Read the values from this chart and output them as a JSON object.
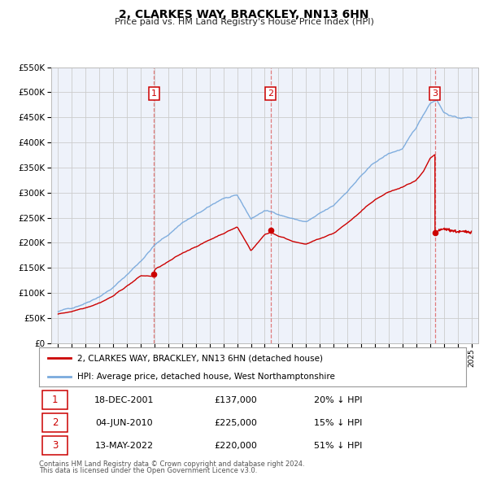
{
  "title": "2, CLARKES WAY, BRACKLEY, NN13 6HN",
  "subtitle": "Price paid vs. HM Land Registry's House Price Index (HPI)",
  "red_label": "2, CLARKES WAY, BRACKLEY, NN13 6HN (detached house)",
  "blue_label": "HPI: Average price, detached house, West Northamptonshire",
  "footnote1": "Contains HM Land Registry data © Crown copyright and database right 2024.",
  "footnote2": "This data is licensed under the Open Government Licence v3.0.",
  "sales": [
    {
      "num": 1,
      "date": "18-DEC-2001",
      "price": "£137,000",
      "hpi": "20% ↓ HPI",
      "year": 2001.96
    },
    {
      "num": 2,
      "date": "04-JUN-2010",
      "price": "£225,000",
      "hpi": "15% ↓ HPI",
      "year": 2010.42
    },
    {
      "num": 3,
      "date": "13-MAY-2022",
      "price": "£220,000",
      "hpi": "51% ↓ HPI",
      "year": 2022.36
    }
  ],
  "sale_values": [
    137000,
    225000,
    220000
  ],
  "ylim": [
    0,
    550000
  ],
  "yticks": [
    0,
    50000,
    100000,
    150000,
    200000,
    250000,
    300000,
    350000,
    400000,
    450000,
    500000,
    550000
  ],
  "xlim_start": 1994.5,
  "xlim_end": 2025.5,
  "background_color": "#ffffff",
  "grid_color": "#cccccc",
  "chart_bg": "#eef2fa",
  "red_color": "#cc0000",
  "blue_color": "#7aaadd",
  "vline_color": "#dd6666",
  "number_box_color": "#cc0000"
}
